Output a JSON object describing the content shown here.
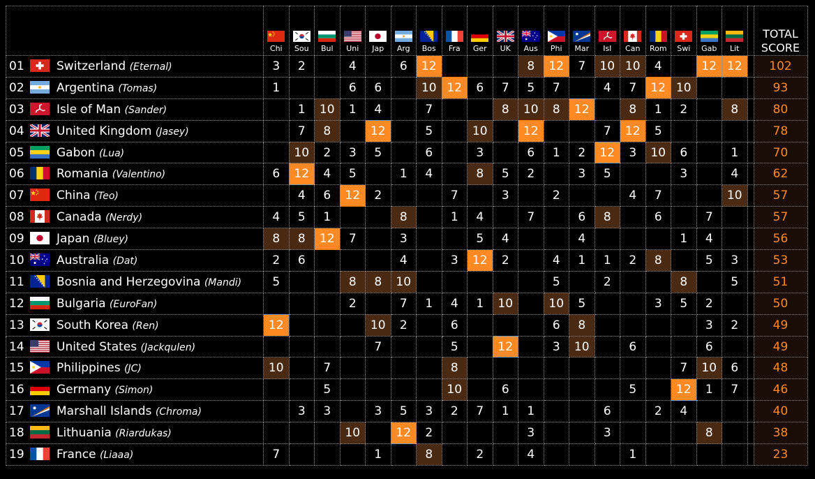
{
  "header": {
    "total_line1": "TOTAL",
    "total_line2": "SCORE",
    "voters": [
      {
        "label": "Chi",
        "flag": "china-flag-icon"
      },
      {
        "label": "Sou",
        "flag": "south-korea-flag-icon"
      },
      {
        "label": "Bul",
        "flag": "bulgaria-flag-icon"
      },
      {
        "label": "Uni",
        "flag": "united-states-flag-icon"
      },
      {
        "label": "Jap",
        "flag": "japan-flag-icon"
      },
      {
        "label": "Arg",
        "flag": "argentina-flag-icon"
      },
      {
        "label": "Bos",
        "flag": "bosnia-flag-icon"
      },
      {
        "label": "Fra",
        "flag": "france-flag-icon"
      },
      {
        "label": "Ger",
        "flag": "germany-flag-icon"
      },
      {
        "label": "UK",
        "flag": "united-kingdom-flag-icon"
      },
      {
        "label": "Aus",
        "flag": "australia-flag-icon"
      },
      {
        "label": "Phi",
        "flag": "philippines-flag-icon"
      },
      {
        "label": "Mar",
        "flag": "marshall-islands-flag-icon"
      },
      {
        "label": "Isl",
        "flag": "isle-of-man-flag-icon"
      },
      {
        "label": "Can",
        "flag": "canada-flag-icon"
      },
      {
        "label": "Rom",
        "flag": "romania-flag-icon"
      },
      {
        "label": "Swi",
        "flag": "switzerland-flag-icon"
      },
      {
        "label": "Gab",
        "flag": "gabon-flag-icon"
      },
      {
        "label": "Lit",
        "flag": "lithuania-flag-icon"
      }
    ]
  },
  "colors": {
    "highlight_12": "#ff8a24",
    "highlight_8_10": "#4a2a12",
    "total_text": "#ff8a24",
    "total_bg": "#1a0d05",
    "grid": "#8a8a8a"
  },
  "rows": [
    {
      "rank": "01",
      "country": "Switzerland",
      "artist": "(Eternal)",
      "flag": "switzerland-flag-icon",
      "scores": [
        "3",
        "2",
        "",
        "4",
        "",
        "6",
        "12",
        "",
        "",
        "",
        "8",
        "12",
        "7",
        "10",
        "10",
        "4",
        "",
        "12",
        "12"
      ],
      "total": "102"
    },
    {
      "rank": "02",
      "country": "Argentina",
      "artist": "(Tomas)",
      "flag": "argentina-flag-icon",
      "scores": [
        "1",
        "",
        "",
        "6",
        "6",
        "",
        "10",
        "12",
        "6",
        "7",
        "5",
        "7",
        "",
        "4",
        "7",
        "12",
        "10",
        "",
        ""
      ],
      "total": "93"
    },
    {
      "rank": "03",
      "country": "Isle of Man",
      "artist": "(Sander)",
      "flag": "isle-of-man-flag-icon",
      "scores": [
        "",
        "1",
        "10",
        "1",
        "4",
        "",
        "7",
        "",
        "",
        "8",
        "10",
        "8",
        "12",
        "",
        "8",
        "1",
        "2",
        "",
        "8"
      ],
      "total": "80"
    },
    {
      "rank": "04",
      "country": "United Kingdom",
      "artist": "(Jasey)",
      "flag": "united-kingdom-flag-icon",
      "scores": [
        "",
        "7",
        "8",
        "",
        "12",
        "",
        "5",
        "",
        "10",
        "",
        "12",
        "",
        "",
        "7",
        "12",
        "5",
        "",
        "",
        ""
      ],
      "total": "78"
    },
    {
      "rank": "05",
      "country": "Gabon",
      "artist": "(Lua)",
      "flag": "gabon-flag-icon",
      "scores": [
        "",
        "10",
        "2",
        "3",
        "5",
        "",
        "6",
        "",
        "3",
        "",
        "6",
        "1",
        "2",
        "12",
        "3",
        "10",
        "6",
        "",
        "1"
      ],
      "total": "70"
    },
    {
      "rank": "06",
      "country": "Romania",
      "artist": "(Valentino)",
      "flag": "romania-flag-icon",
      "scores": [
        "6",
        "12",
        "4",
        "5",
        "",
        "1",
        "4",
        "",
        "8",
        "5",
        "2",
        "",
        "3",
        "5",
        "",
        "",
        "3",
        "",
        "4"
      ],
      "total": "62"
    },
    {
      "rank": "07",
      "country": "China",
      "artist": "(Teo)",
      "flag": "china-flag-icon",
      "scores": [
        "",
        "4",
        "6",
        "12",
        "2",
        "",
        "",
        "7",
        "",
        "3",
        "",
        "2",
        "",
        "",
        "4",
        "7",
        "",
        "",
        "10"
      ],
      "total": "57"
    },
    {
      "rank": "08",
      "country": "Canada",
      "artist": "(Nerdy)",
      "flag": "canada-flag-icon",
      "scores": [
        "4",
        "5",
        "1",
        "",
        "",
        "8",
        "",
        "1",
        "4",
        "",
        "7",
        "",
        "6",
        "8",
        "",
        "6",
        "",
        "7",
        ""
      ],
      "total": "57"
    },
    {
      "rank": "09",
      "country": "Japan",
      "artist": "(Bluey)",
      "flag": "japan-flag-icon",
      "scores": [
        "8",
        "8",
        "12",
        "7",
        "",
        "3",
        "",
        "",
        "5",
        "4",
        "",
        "",
        "4",
        "",
        "",
        "",
        "1",
        "4",
        ""
      ],
      "total": "56"
    },
    {
      "rank": "10",
      "country": "Australia",
      "artist": "(Dat)",
      "flag": "australia-flag-icon",
      "scores": [
        "2",
        "6",
        "",
        "",
        "",
        "4",
        "",
        "3",
        "12",
        "2",
        "",
        "4",
        "1",
        "1",
        "2",
        "8",
        "",
        "5",
        "3"
      ],
      "total": "53"
    },
    {
      "rank": "11",
      "country": "Bosnia and Herzegovina",
      "artist": "(Mandi)",
      "flag": "bosnia-flag-icon",
      "scores": [
        "5",
        "",
        "",
        "8",
        "8",
        "10",
        "",
        "",
        "",
        "",
        "",
        "5",
        "",
        "2",
        "",
        "",
        "8",
        "",
        "5"
      ],
      "total": "51"
    },
    {
      "rank": "12",
      "country": "Bulgaria",
      "artist": "(EuroFan)",
      "flag": "bulgaria-flag-icon",
      "scores": [
        "",
        "",
        "",
        "2",
        "",
        "7",
        "1",
        "4",
        "1",
        "10",
        "",
        "10",
        "5",
        "",
        "",
        "3",
        "5",
        "2",
        ""
      ],
      "total": "50"
    },
    {
      "rank": "13",
      "country": "South Korea",
      "artist": "(Ren)",
      "flag": "south-korea-flag-icon",
      "scores": [
        "12",
        "",
        "",
        "",
        "10",
        "2",
        "",
        "6",
        "",
        "",
        "",
        "6",
        "8",
        "",
        "",
        "",
        "",
        "3",
        "2"
      ],
      "total": "49"
    },
    {
      "rank": "14",
      "country": "United States",
      "artist": "(Jackqulen)",
      "flag": "united-states-flag-icon",
      "scores": [
        "",
        "",
        "",
        "",
        "7",
        "",
        "",
        "5",
        "",
        "12",
        "",
        "3",
        "10",
        "",
        "6",
        "",
        "",
        "6",
        ""
      ],
      "total": "49"
    },
    {
      "rank": "15",
      "country": "Philippines",
      "artist": "(JC)",
      "flag": "philippines-flag-icon",
      "scores": [
        "10",
        "",
        "7",
        "",
        "",
        "",
        "",
        "8",
        "",
        "",
        "",
        "",
        "",
        "",
        "",
        "",
        "7",
        "10",
        "6"
      ],
      "total": "48"
    },
    {
      "rank": "16",
      "country": "Germany",
      "artist": "(Simon)",
      "flag": "germany-flag-icon",
      "scores": [
        "",
        "",
        "5",
        "",
        "",
        "",
        "",
        "10",
        "",
        "6",
        "",
        "",
        "",
        "",
        "5",
        "",
        "12",
        "1",
        "7"
      ],
      "total": "46"
    },
    {
      "rank": "17",
      "country": "Marshall Islands",
      "artist": "(Chroma)",
      "flag": "marshall-islands-flag-icon",
      "scores": [
        "",
        "3",
        "3",
        "",
        "3",
        "5",
        "3",
        "2",
        "7",
        "1",
        "1",
        "",
        "",
        "6",
        "",
        "2",
        "4",
        "",
        ""
      ],
      "total": "40"
    },
    {
      "rank": "18",
      "country": "Lithuania",
      "artist": "(Riardukas)",
      "flag": "lithuania-flag-icon",
      "scores": [
        "",
        "",
        "",
        "10",
        "",
        "12",
        "2",
        "",
        "",
        "",
        "3",
        "",
        "",
        "3",
        "",
        "",
        "",
        "8",
        ""
      ],
      "total": "38"
    },
    {
      "rank": "19",
      "country": "France",
      "artist": "(Liaaa)",
      "flag": "france-flag-icon",
      "scores": [
        "7",
        "",
        "",
        "",
        "1",
        "",
        "8",
        "",
        "2",
        "",
        "4",
        "",
        "",
        "",
        "1",
        "",
        "",
        "",
        ""
      ],
      "total": "23"
    }
  ]
}
